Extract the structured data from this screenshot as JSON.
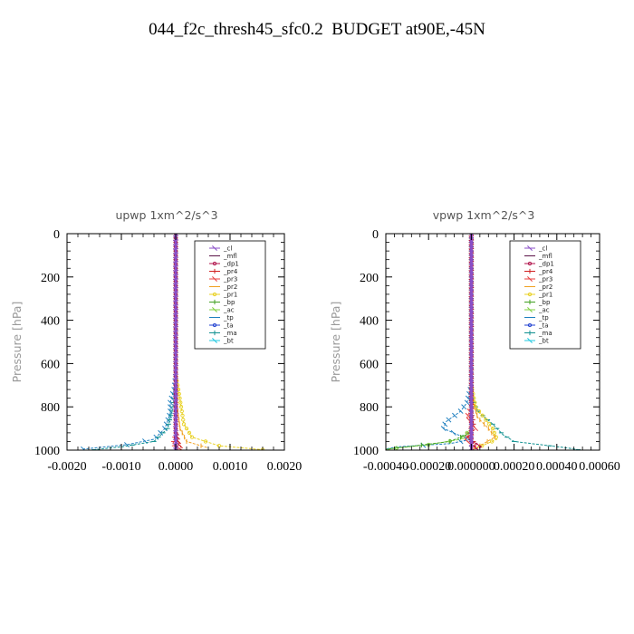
{
  "title": "044_f2c_thresh45_sfc0.2  BUDGET at90E,-45N",
  "colors": {
    "_cl": "#8a4fc8",
    "_mfl": "#5a1248",
    "_dp1": "#b0124a",
    "_pr4": "#d02020",
    "_pr3": "#e84040",
    "_pr2": "#f0a020",
    "_pr1": "#e8d020",
    "_bp": "#40a020",
    "_ac": "#80d040",
    "_tp": "#2080c0",
    "_ta": "#2040d0",
    "_ma": "#109090",
    "_bt": "#20c8e0"
  },
  "chart_data": [
    {
      "type": "line",
      "title": "upwp    1xm^2/s^3",
      "ylabel": "Pressure  [hPa]",
      "xlabel": "",
      "xlim": [
        -0.002,
        0.002
      ],
      "ylim": [
        1000,
        0
      ],
      "xticks": [
        -0.002,
        -0.001,
        0.0,
        0.001,
        0.002
      ],
      "xtick_labels": [
        "-0.0020",
        "-0.0010",
        "0.0000",
        "0.0010",
        "0.0020"
      ],
      "yticks": [
        0,
        200,
        400,
        600,
        800,
        1000
      ],
      "ytick_labels": [
        "0",
        "200",
        "400",
        "600",
        "800",
        "1000"
      ],
      "legend": [
        "_cl",
        "_mfl",
        "_dp1",
        "_pr4",
        "_pr3",
        "_pr2",
        "_pr1",
        "_bp",
        "_ac",
        "_tp",
        "_ta",
        "_ma",
        "_bt"
      ],
      "legend_position": "top-right",
      "series": [
        {
          "name": "_tp",
          "points": [
            [
              0,
              0
            ],
            [
              0,
              650
            ],
            [
              -3e-05,
              720
            ],
            [
              -0.0001,
              780
            ],
            [
              -0.0001,
              830
            ],
            [
              -0.0002,
              900
            ],
            [
              -0.0004,
              950
            ],
            [
              -0.0009,
              975
            ],
            [
              -0.0017,
              995
            ]
          ]
        },
        {
          "name": "_ma",
          "points": [
            [
              0,
              0
            ],
            [
              0,
              700
            ],
            [
              -5e-05,
              800
            ],
            [
              -0.00015,
              900
            ],
            [
              -0.0004,
              960
            ],
            [
              -0.001,
              985
            ],
            [
              -0.0015,
              998
            ]
          ]
        },
        {
          "name": "_pr1",
          "points": [
            [
              0,
              0
            ],
            [
              0,
              650
            ],
            [
              5e-05,
              720
            ],
            [
              0.0001,
              800
            ],
            [
              0.00015,
              880
            ],
            [
              0.0003,
              940
            ],
            [
              0.0008,
              980
            ],
            [
              0.0016,
              998
            ]
          ]
        },
        {
          "name": "_pr2",
          "points": [
            [
              0,
              0
            ],
            [
              0,
              700
            ],
            [
              3e-05,
              800
            ],
            [
              8e-05,
              900
            ],
            [
              0.0002,
              960
            ],
            [
              0.0006,
              990
            ]
          ]
        },
        {
          "name": "_pr4",
          "points": [
            [
              0,
              0
            ],
            [
              0,
              900
            ],
            [
              5e-05,
              960
            ],
            [
              0.0001,
              990
            ],
            [
              0.0001,
              1000
            ]
          ]
        },
        {
          "name": "_pr3",
          "points": [
            [
              0,
              0
            ],
            [
              0,
              920
            ],
            [
              -5e-05,
              970
            ],
            [
              2e-05,
              1000
            ]
          ]
        },
        {
          "name": "_dp1",
          "points": [
            [
              0,
              0
            ],
            [
              0,
              950
            ],
            [
              3e-05,
              985
            ],
            [
              0,
              1000
            ]
          ]
        },
        {
          "name": "_mfl",
          "points": [
            [
              0,
              0
            ],
            [
              0,
              1000
            ]
          ]
        },
        {
          "name": "_cl",
          "points": [
            [
              0,
              0
            ],
            [
              0,
              1000
            ]
          ]
        }
      ]
    },
    {
      "type": "line",
      "title": "vpwp    1xm^2/s^3",
      "ylabel": "Pressure  [hPa]",
      "xlabel": "",
      "xlim": [
        -0.0004,
        0.0006
      ],
      "ylim": [
        1000,
        0
      ],
      "xticks": [
        -0.0004,
        -0.0002,
        0.0,
        0.0002,
        0.0004,
        0.0006
      ],
      "xtick_labels": [
        "-0.00040",
        "-0.00020",
        "0.000000",
        "0.00020",
        "0.00040",
        "0.00060"
      ],
      "yticks": [
        0,
        200,
        400,
        600,
        800,
        1000
      ],
      "ytick_labels": [
        "0",
        "200",
        "400",
        "600",
        "800",
        "1000"
      ],
      "legend": [
        "_cl",
        "_mfl",
        "_dp1",
        "_pr4",
        "_pr3",
        "_pr2",
        "_pr1",
        "_bp",
        "_ac",
        "_tp",
        "_ta",
        "_ma",
        "_bt"
      ],
      "legend_position": "top-right",
      "series": [
        {
          "name": "_tp",
          "points": [
            [
              0,
              0
            ],
            [
              0,
              700
            ],
            [
              -2e-05,
              780
            ],
            [
              -5e-05,
              820
            ],
            [
              -0.00012,
              870
            ],
            [
              -0.00013,
              900
            ],
            [
              -6e-05,
              930
            ],
            [
              0,
              950
            ],
            [
              -0.0001,
              970
            ],
            [
              -0.00035,
              985
            ],
            [
              -0.0004,
              995
            ]
          ]
        },
        {
          "name": "_ma",
          "points": [
            [
              0,
              0
            ],
            [
              0,
              750
            ],
            [
              3e-05,
              820
            ],
            [
              0.0001,
              880
            ],
            [
              0.00015,
              930
            ],
            [
              0.0002,
              960
            ],
            [
              0.00045,
              990
            ],
            [
              0.0005,
              998
            ]
          ]
        },
        {
          "name": "_pr1",
          "points": [
            [
              0,
              0
            ],
            [
              0,
              700
            ],
            [
              2e-05,
              800
            ],
            [
              6e-05,
              850
            ],
            [
              0.0001,
              900
            ],
            [
              0.00012,
              950
            ],
            [
              5e-05,
              980
            ],
            [
              0,
              1000
            ]
          ]
        },
        {
          "name": "_pr2",
          "points": [
            [
              0,
              0
            ],
            [
              0,
              750
            ],
            [
              3e-05,
              850
            ],
            [
              8e-05,
              900
            ],
            [
              0.00011,
              940
            ],
            [
              4e-05,
              980
            ],
            [
              0,
              1000
            ]
          ]
        },
        {
          "name": "_pr3",
          "points": [
            [
              0,
              0
            ],
            [
              0,
              800
            ],
            [
              -2e-05,
              850
            ],
            [
              2e-05,
              900
            ],
            [
              -3e-05,
              950
            ],
            [
              2e-05,
              990
            ]
          ]
        },
        {
          "name": "_pr4",
          "points": [
            [
              0,
              0
            ],
            [
              0,
              820
            ],
            [
              1e-05,
              880
            ],
            [
              -2e-05,
              930
            ],
            [
              2e-05,
              970
            ],
            [
              0,
              1000
            ]
          ]
        },
        {
          "name": "_ac",
          "points": [
            [
              0,
              0
            ],
            [
              0,
              900
            ],
            [
              -5e-05,
              950
            ],
            [
              -0.0002,
              975
            ],
            [
              -0.00035,
              990
            ],
            [
              -0.0004,
              998
            ]
          ]
        },
        {
          "name": "_bp",
          "points": [
            [
              0,
              0
            ],
            [
              0,
              920
            ],
            [
              -0.0001,
              960
            ],
            [
              -0.0003,
              985
            ],
            [
              -0.0004,
              996
            ]
          ]
        },
        {
          "name": "_dp1",
          "points": [
            [
              0,
              0
            ],
            [
              0,
              960
            ],
            [
              5e-05,
              985
            ],
            [
              0,
              1000
            ]
          ]
        },
        {
          "name": "_mfl",
          "points": [
            [
              0,
              0
            ],
            [
              0,
              1000
            ]
          ]
        },
        {
          "name": "_cl",
          "points": [
            [
              0,
              0
            ],
            [
              0,
              1000
            ]
          ]
        }
      ]
    }
  ]
}
